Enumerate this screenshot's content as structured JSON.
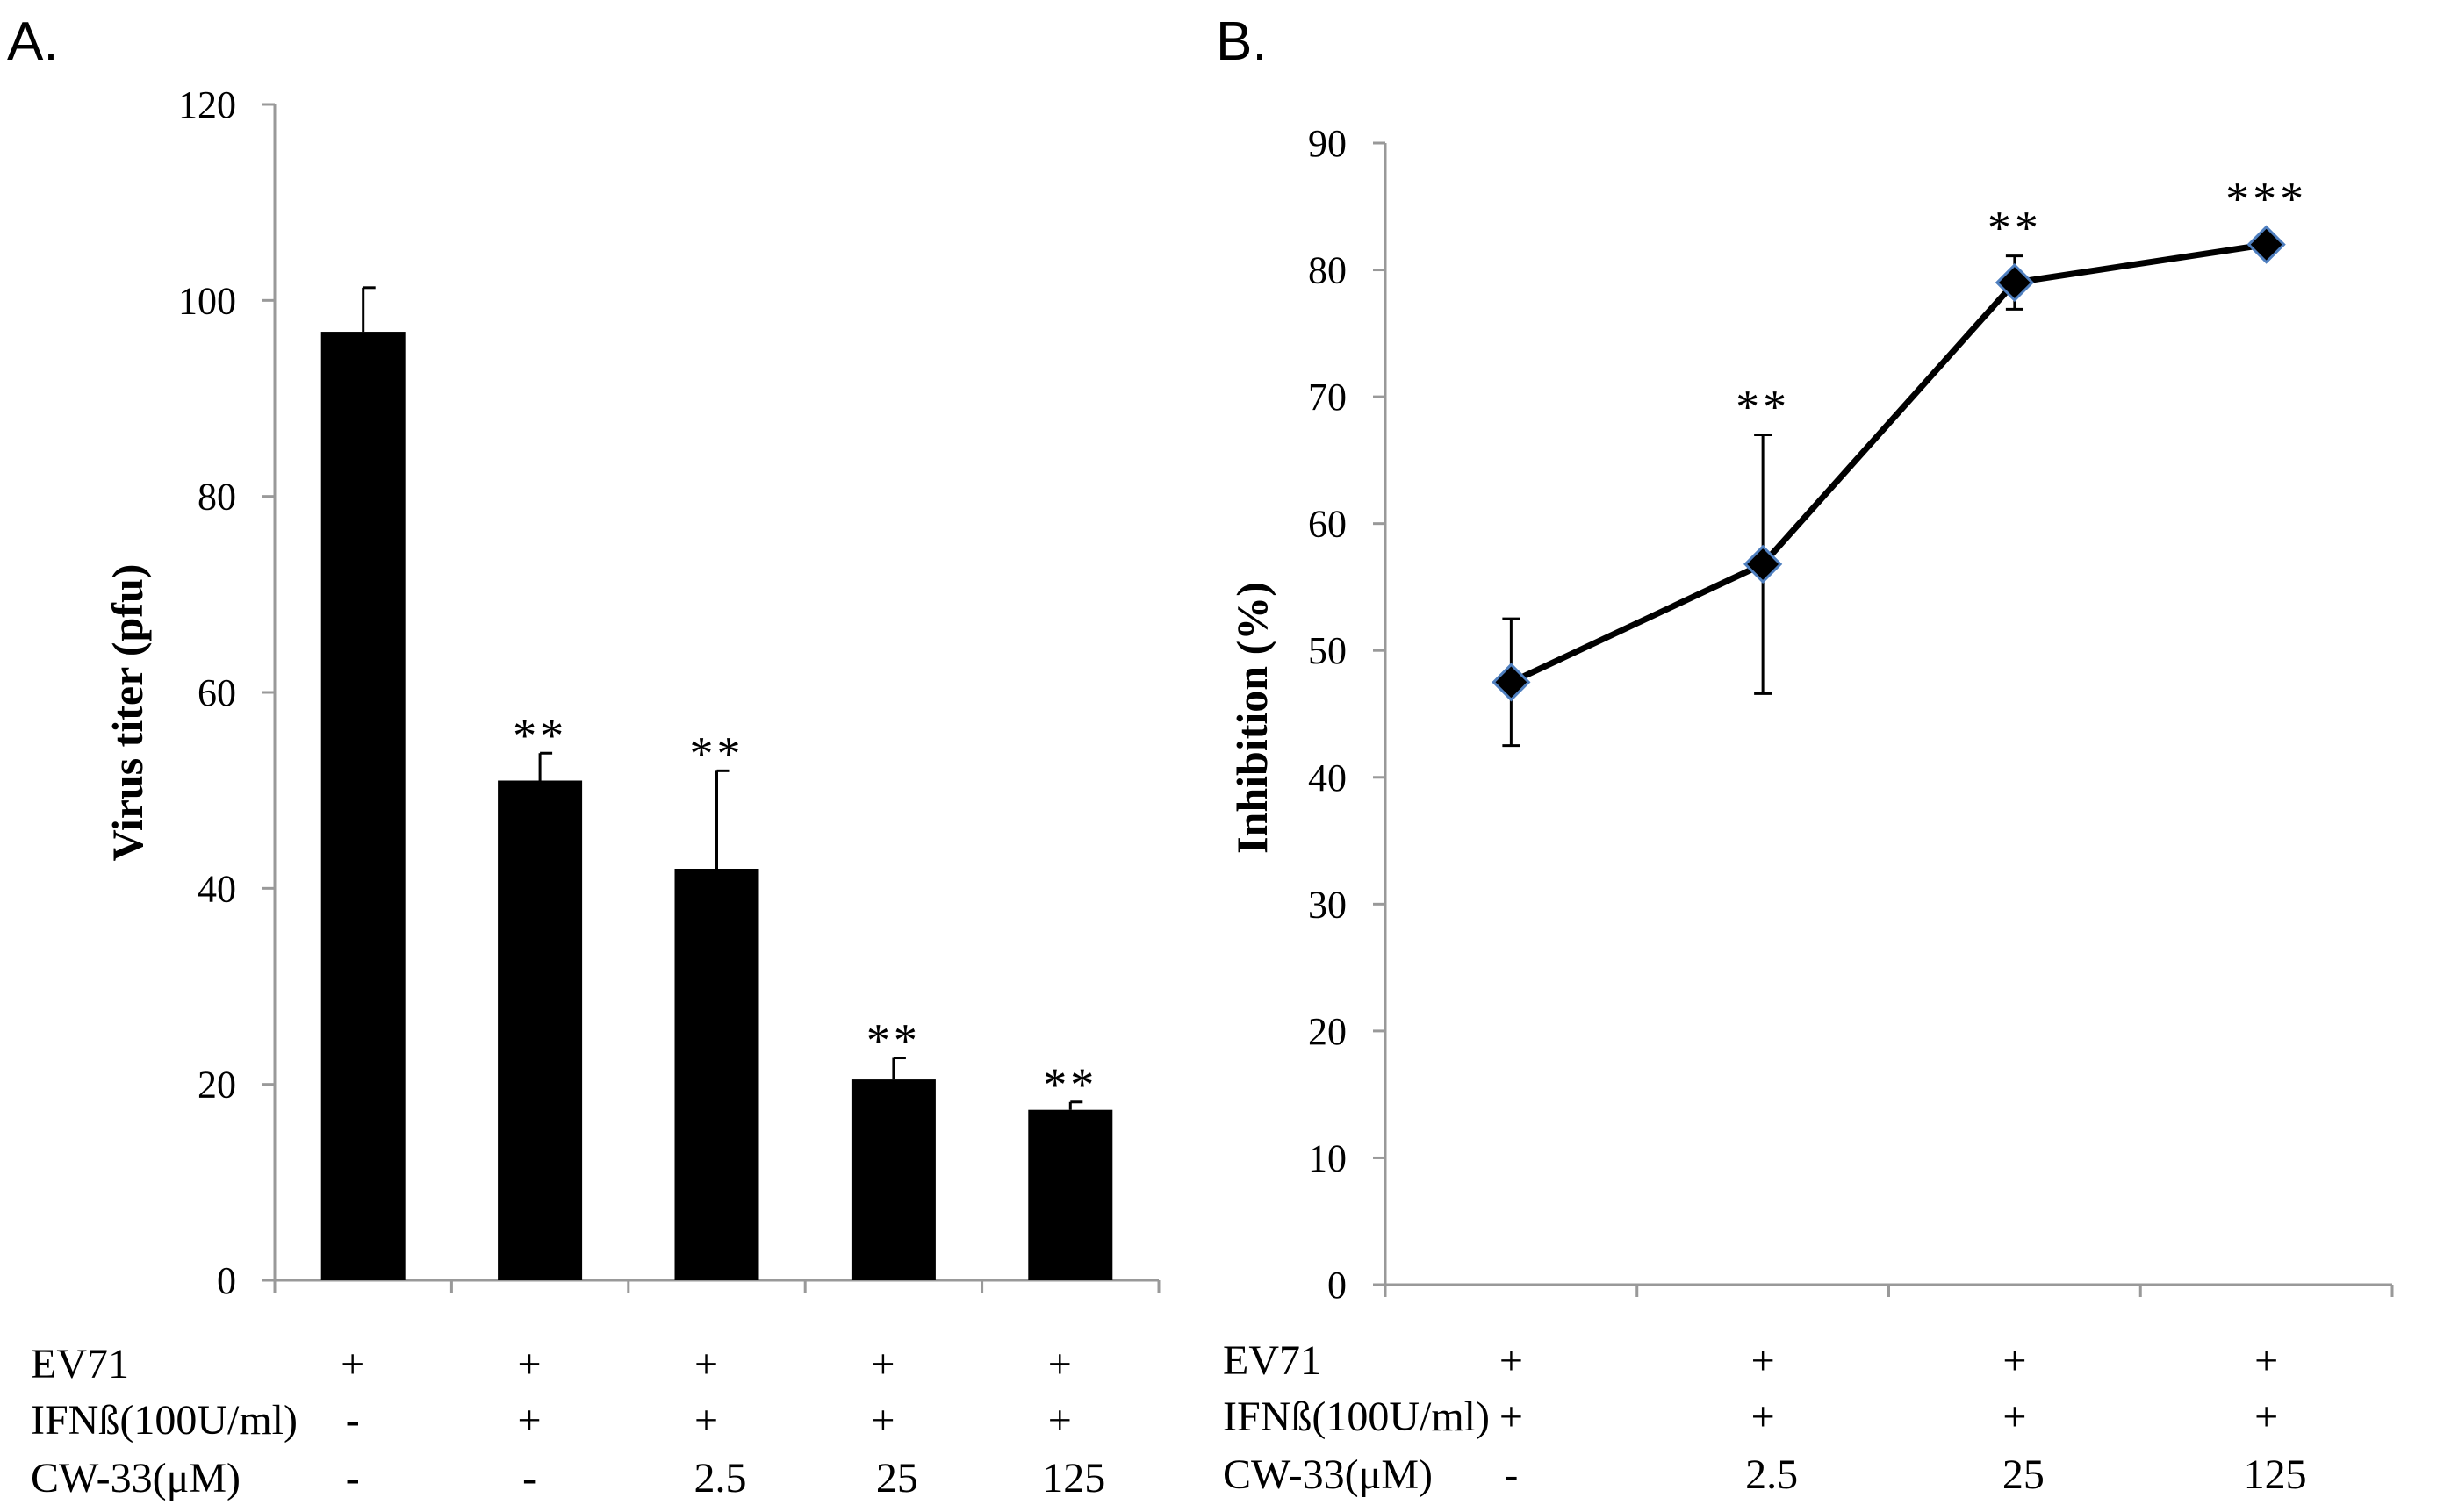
{
  "panel_a_label": "A.",
  "panel_b_label": "B.",
  "chart_data": [
    {
      "type": "bar",
      "ylabel": "Virus titer (pfu)",
      "ylim": [
        0,
        120
      ],
      "yticks": [
        0,
        20,
        40,
        60,
        80,
        100,
        120
      ],
      "values": [
        96.8,
        51.0,
        42.0,
        20.5,
        17.4
      ],
      "errors": [
        4.5,
        2.8,
        10.0,
        2.2,
        0.8
      ],
      "significance": [
        "",
        "**",
        "**",
        "**",
        "**"
      ],
      "conditions": [
        {
          "label": "EV71",
          "values": [
            "+",
            "+",
            "+",
            "+",
            "+"
          ]
        },
        {
          "label": "IFNß(100U/ml)",
          "values": [
            "-",
            "+",
            "+",
            "+",
            "+"
          ]
        },
        {
          "label": "CW-33(μM)",
          "values": [
            "-",
            "-",
            "2.5",
            "25",
            "125"
          ]
        }
      ]
    },
    {
      "type": "line",
      "ylabel": "Inhibition (%)",
      "ylim": [
        0,
        90
      ],
      "yticks": [
        0,
        10,
        20,
        30,
        40,
        50,
        60,
        70,
        80,
        90
      ],
      "values": [
        47.5,
        56.8,
        79.0,
        82.0
      ],
      "errors": [
        5.0,
        10.2,
        2.1,
        0.3
      ],
      "significance": [
        "",
        "**",
        "**",
        "***"
      ],
      "conditions": [
        {
          "label": "EV71",
          "values": [
            "+",
            "+",
            "+",
            "+"
          ]
        },
        {
          "label": "IFNß(100U/ml)",
          "values": [
            "+",
            "+",
            "+",
            "+"
          ]
        },
        {
          "label": "CW-33(μM)",
          "values": [
            "-",
            "2.5",
            "25",
            "125"
          ]
        }
      ]
    }
  ]
}
